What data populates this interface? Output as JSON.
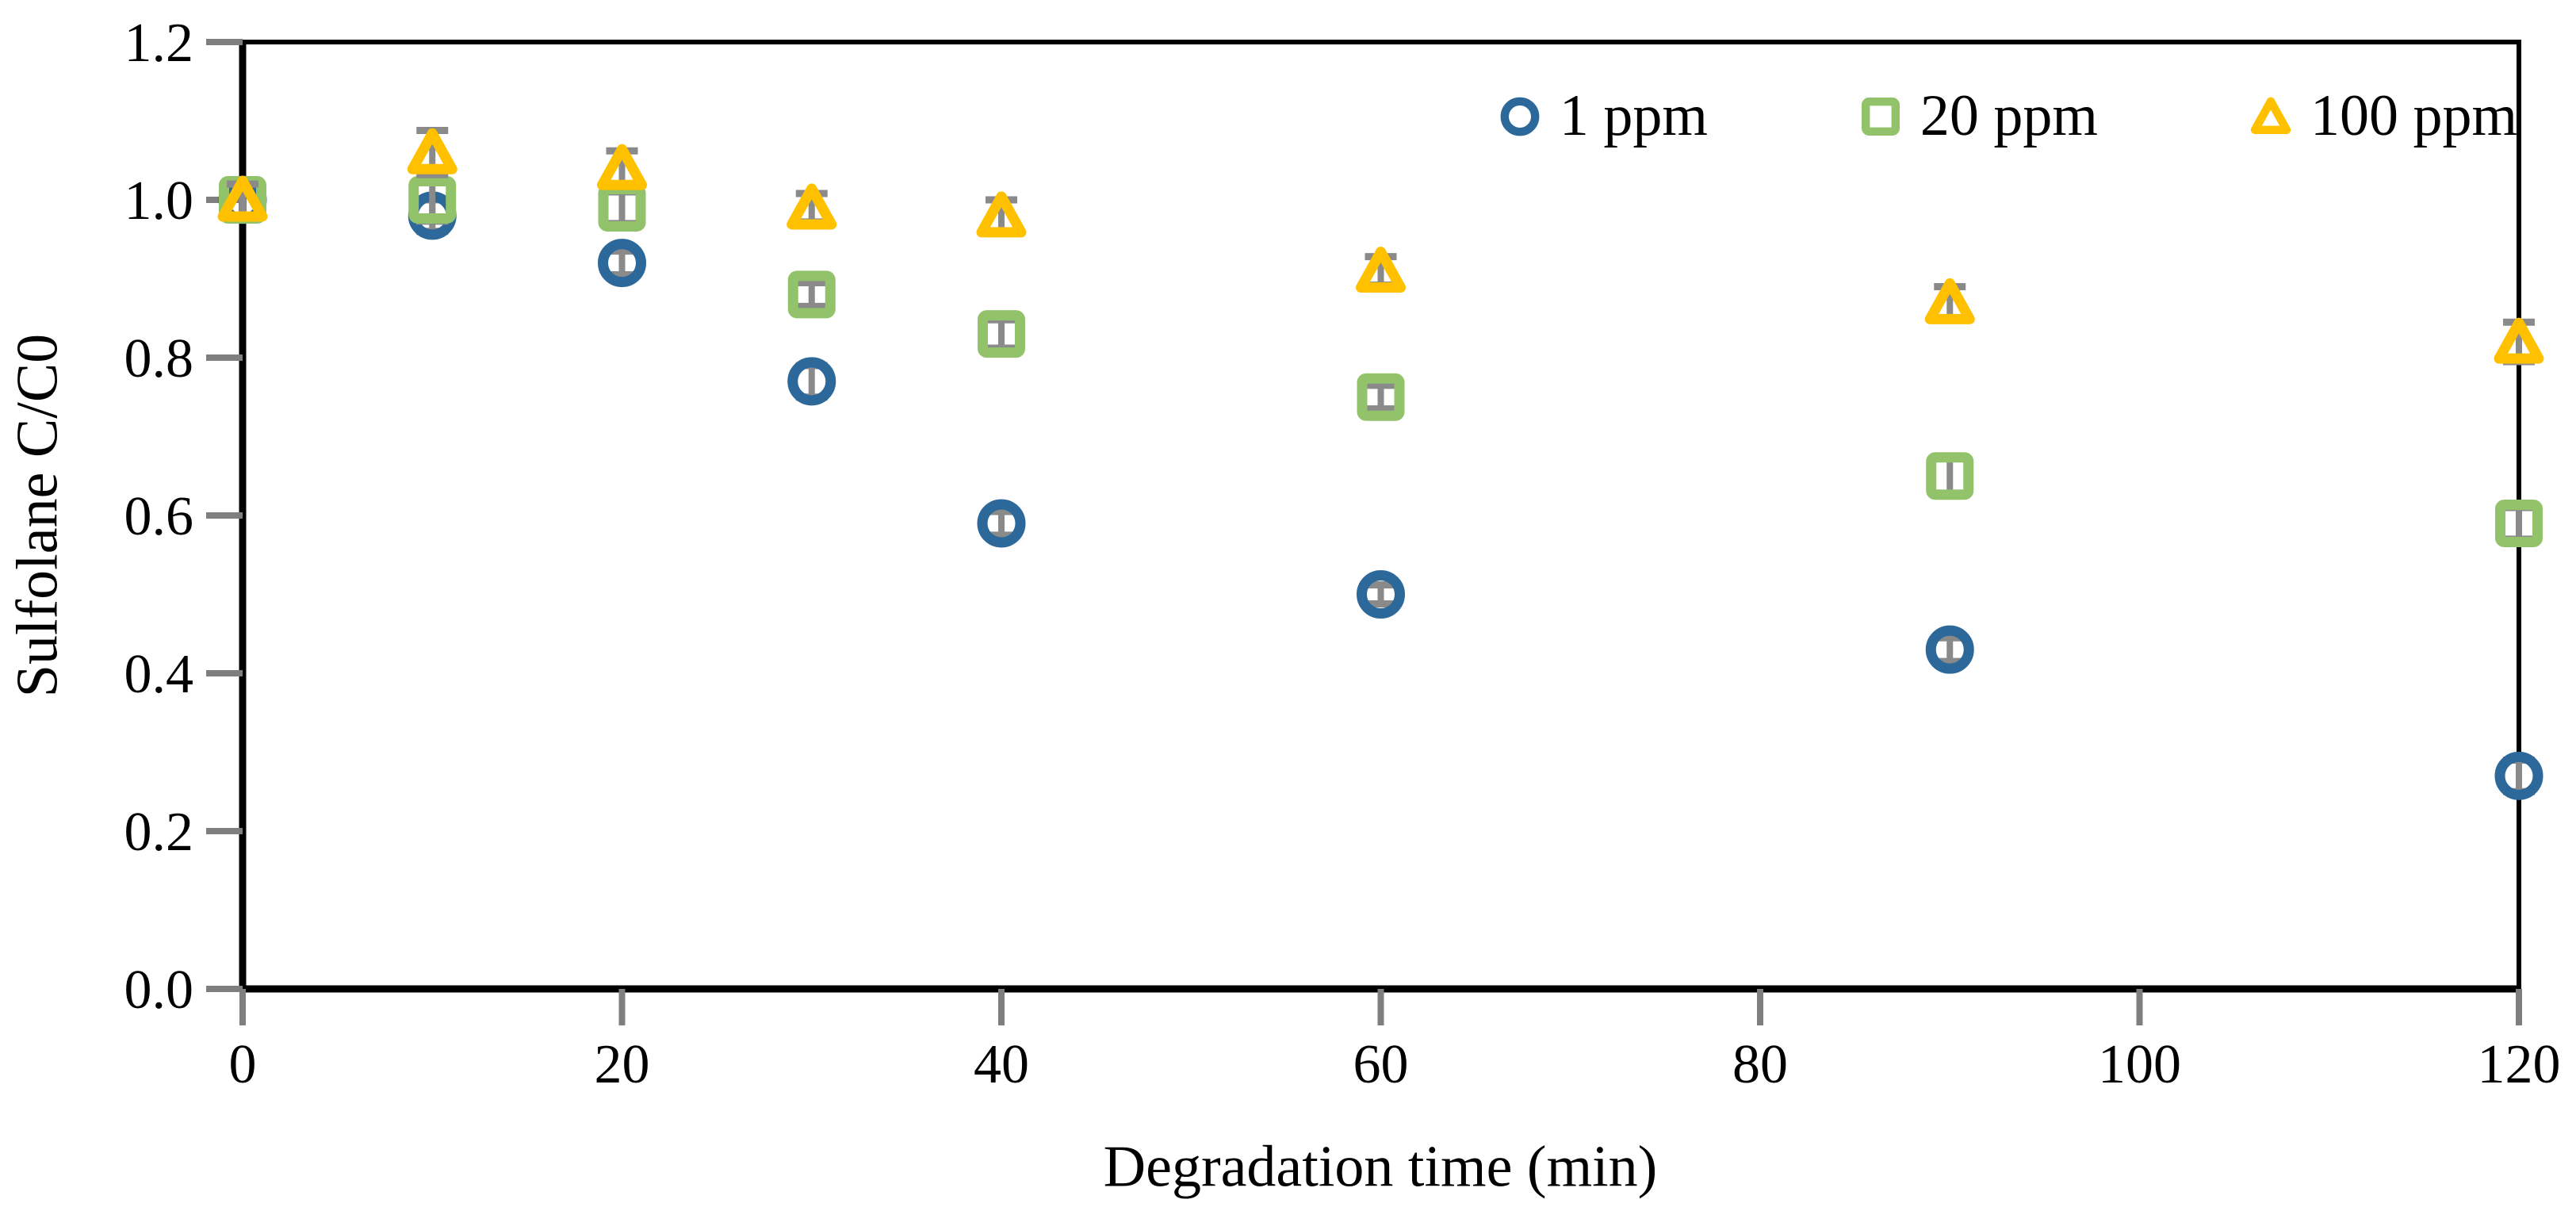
{
  "chart_data": {
    "type": "scatter",
    "title": "",
    "xlabel": "Degradation time (min)",
    "ylabel": "Sulfolane C/C0",
    "xlim": [
      0,
      120
    ],
    "ylim": [
      0,
      1.2
    ],
    "grid": false,
    "legend_position": "top-right-inside",
    "x_ticks": [
      0,
      20,
      40,
      60,
      80,
      100,
      120
    ],
    "x_tick_labels": [
      "0",
      "20",
      "40",
      "60",
      "80",
      "100",
      "120"
    ],
    "y_ticks": [
      0.0,
      0.2,
      0.4,
      0.6,
      0.8,
      1.0,
      1.2
    ],
    "y_tick_labels": [
      "0.0",
      "0.2",
      "0.4",
      "0.6",
      "0.8",
      "1.0",
      "1.2"
    ],
    "x": [
      0,
      10,
      20,
      30,
      40,
      60,
      90,
      120
    ],
    "series": [
      {
        "name": "1 ppm",
        "marker": "circle",
        "color": "#2d689a",
        "values": [
          1.0,
          0.98,
          0.92,
          0.77,
          0.59,
          0.5,
          0.43,
          0.27
        ],
        "errors": [
          0.02,
          0.02,
          0.015,
          0.02,
          0.015,
          0.012,
          0.015,
          0.02
        ]
      },
      {
        "name": "20 ppm",
        "marker": "square",
        "color": "#92c36a",
        "values": [
          1.0,
          1.0,
          0.99,
          0.88,
          0.83,
          0.75,
          0.65,
          0.59
        ],
        "errors": [
          0.02,
          0.027,
          0.02,
          0.015,
          0.018,
          0.015,
          0.025,
          0.02
        ]
      },
      {
        "name": "100 ppm",
        "marker": "triangle",
        "color": "#ffc000",
        "values": [
          1.0,
          1.06,
          1.04,
          0.99,
          0.98,
          0.91,
          0.87,
          0.82
        ],
        "errors": [
          0.02,
          0.028,
          0.022,
          0.018,
          0.02,
          0.018,
          0.02,
          0.025
        ]
      }
    ],
    "colors": {
      "axis": "#000000",
      "tick": "#7f7f7f",
      "error_bar": "#8a8a8a",
      "background": "#ffffff"
    }
  }
}
